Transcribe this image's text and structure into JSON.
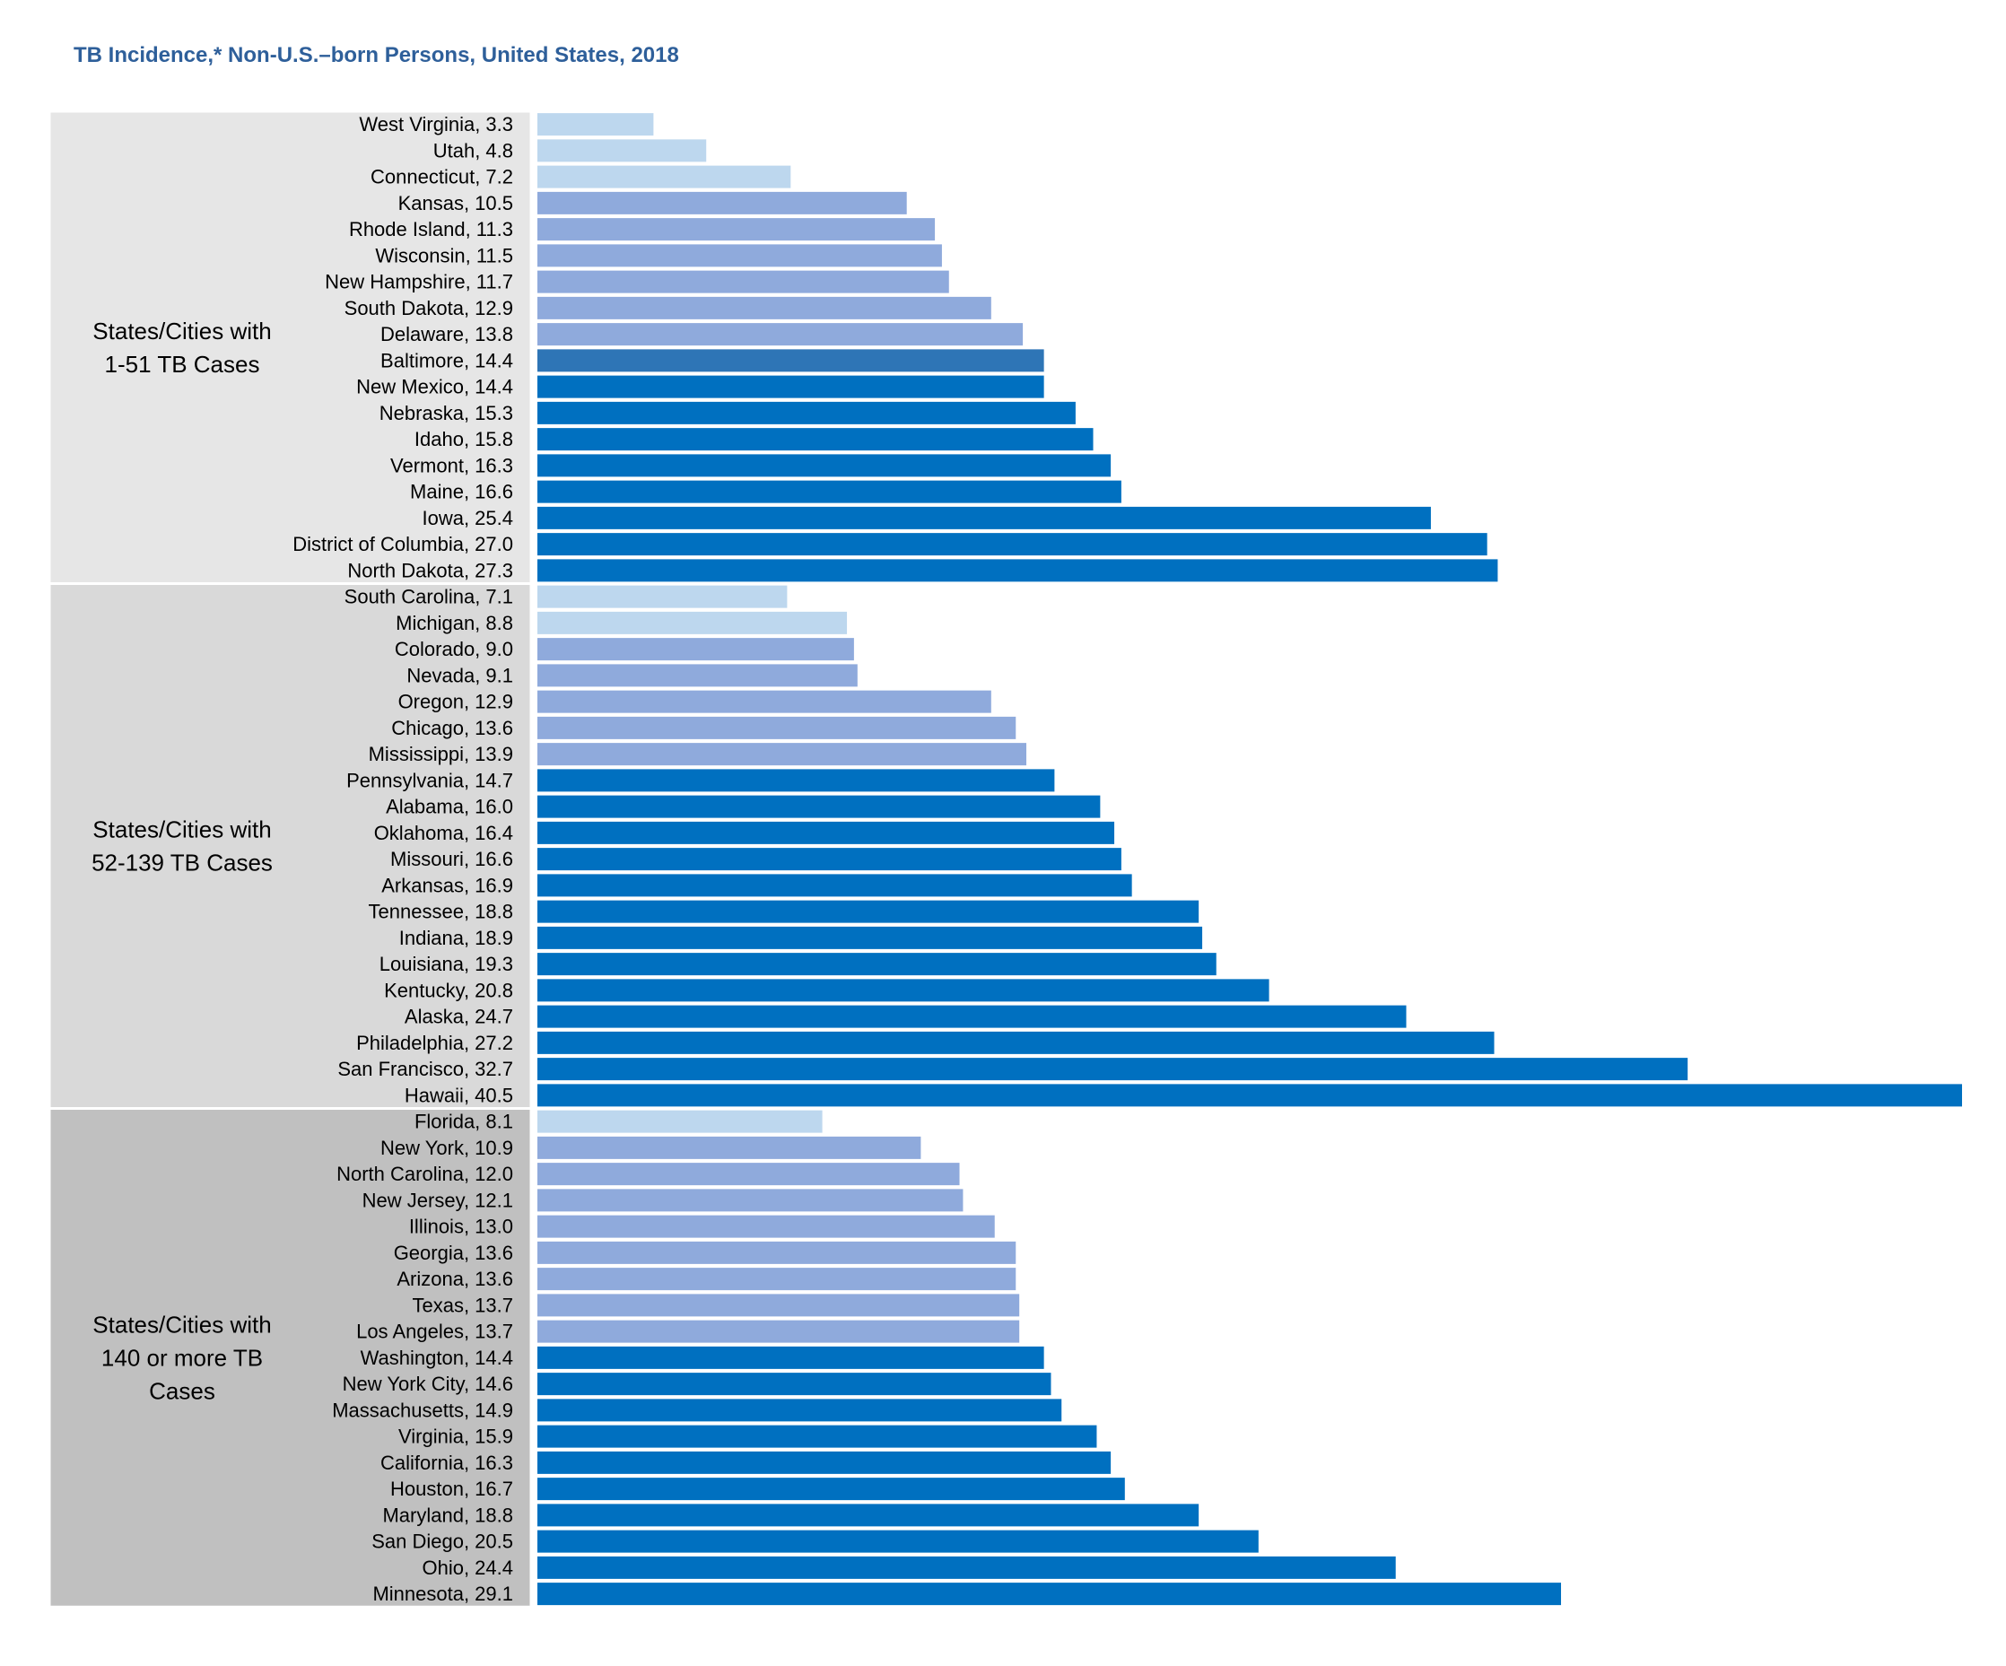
{
  "title": "TB Incidence,* Non-U.S.–born Persons, United States, 2018",
  "colors": {
    "light": "#bdd7ee",
    "medium": "#8faadc",
    "dark": "#0070c0",
    "baltimore": "#2e75b6",
    "group_backgrounds": [
      "#e6e6e6",
      "#d9d9d9",
      "#c0c0c0"
    ]
  },
  "chart_data": {
    "type": "bar",
    "orientation": "horizontal",
    "title": "TB Incidence,* Non-U.S.–born Persons, United States, 2018",
    "xlabel": "",
    "ylabel": "",
    "xlim": [
      0,
      40.5
    ],
    "grid": false,
    "groups": [
      {
        "label_lines": [
          "States/Cities with",
          "1-51 TB Cases"
        ],
        "items": [
          {
            "name": "West Virginia",
            "value": 3.3,
            "color": "light"
          },
          {
            "name": "Utah",
            "value": 4.8,
            "color": "light"
          },
          {
            "name": "Connecticut",
            "value": 7.2,
            "color": "light"
          },
          {
            "name": "Kansas",
            "value": 10.5,
            "color": "medium"
          },
          {
            "name": "Rhode Island",
            "value": 11.3,
            "color": "medium"
          },
          {
            "name": "Wisconsin",
            "value": 11.5,
            "color": "medium"
          },
          {
            "name": "New Hampshire",
            "value": 11.7,
            "color": "medium"
          },
          {
            "name": "South Dakota",
            "value": 12.9,
            "color": "medium"
          },
          {
            "name": "Delaware",
            "value": 13.8,
            "color": "medium"
          },
          {
            "name": "Baltimore",
            "value": 14.4,
            "color": "baltimore"
          },
          {
            "name": "New Mexico",
            "value": 14.4,
            "color": "dark"
          },
          {
            "name": "Nebraska",
            "value": 15.3,
            "color": "dark"
          },
          {
            "name": "Idaho",
            "value": 15.8,
            "color": "dark"
          },
          {
            "name": "Vermont",
            "value": 16.3,
            "color": "dark"
          },
          {
            "name": "Maine",
            "value": 16.6,
            "color": "dark"
          },
          {
            "name": "Iowa",
            "value": 25.4,
            "color": "dark"
          },
          {
            "name": "District of Columbia",
            "value": 27.0,
            "color": "dark"
          },
          {
            "name": "North Dakota",
            "value": 27.3,
            "color": "dark"
          }
        ]
      },
      {
        "label_lines": [
          "States/Cities with",
          "52-139 TB Cases"
        ],
        "items": [
          {
            "name": "South Carolina",
            "value": 7.1,
            "color": "light"
          },
          {
            "name": "Michigan",
            "value": 8.8,
            "color": "light"
          },
          {
            "name": "Colorado",
            "value": 9.0,
            "color": "medium"
          },
          {
            "name": "Nevada",
            "value": 9.1,
            "color": "medium"
          },
          {
            "name": "Oregon",
            "value": 12.9,
            "color": "medium"
          },
          {
            "name": "Chicago",
            "value": 13.6,
            "color": "medium"
          },
          {
            "name": "Mississippi",
            "value": 13.9,
            "color": "medium"
          },
          {
            "name": "Pennsylvania",
            "value": 14.7,
            "color": "dark"
          },
          {
            "name": "Alabama",
            "value": 16.0,
            "color": "dark"
          },
          {
            "name": "Oklahoma",
            "value": 16.4,
            "color": "dark"
          },
          {
            "name": "Missouri",
            "value": 16.6,
            "color": "dark"
          },
          {
            "name": "Arkansas",
            "value": 16.9,
            "color": "dark"
          },
          {
            "name": "Tennessee",
            "value": 18.8,
            "color": "dark"
          },
          {
            "name": "Indiana",
            "value": 18.9,
            "color": "dark"
          },
          {
            "name": "Louisiana",
            "value": 19.3,
            "color": "dark"
          },
          {
            "name": "Kentucky",
            "value": 20.8,
            "color": "dark"
          },
          {
            "name": "Alaska",
            "value": 24.7,
            "color": "dark"
          },
          {
            "name": "Philadelphia",
            "value": 27.2,
            "color": "dark"
          },
          {
            "name": "San Francisco",
            "value": 32.7,
            "color": "dark"
          },
          {
            "name": "Hawaii",
            "value": 40.5,
            "color": "dark"
          }
        ]
      },
      {
        "label_lines": [
          "States/Cities with",
          "140 or more TB",
          "Cases"
        ],
        "items": [
          {
            "name": "Florida",
            "value": 8.1,
            "color": "light"
          },
          {
            "name": "New York",
            "value": 10.9,
            "color": "medium"
          },
          {
            "name": "North Carolina",
            "value": 12.0,
            "color": "medium"
          },
          {
            "name": "New Jersey",
            "value": 12.1,
            "color": "medium"
          },
          {
            "name": "Illinois",
            "value": 13.0,
            "color": "medium"
          },
          {
            "name": "Georgia",
            "value": 13.6,
            "color": "medium"
          },
          {
            "name": "Arizona",
            "value": 13.6,
            "color": "medium"
          },
          {
            "name": "Texas",
            "value": 13.7,
            "color": "medium"
          },
          {
            "name": "Los Angeles",
            "value": 13.7,
            "color": "medium"
          },
          {
            "name": "Washington",
            "value": 14.4,
            "color": "dark"
          },
          {
            "name": "New York City",
            "value": 14.6,
            "color": "dark"
          },
          {
            "name": "Massachusetts",
            "value": 14.9,
            "color": "dark"
          },
          {
            "name": "Virginia",
            "value": 15.9,
            "color": "dark"
          },
          {
            "name": "California",
            "value": 16.3,
            "color": "dark"
          },
          {
            "name": "Houston",
            "value": 16.7,
            "color": "dark"
          },
          {
            "name": "Maryland",
            "value": 18.8,
            "color": "dark"
          },
          {
            "name": "San Diego",
            "value": 20.5,
            "color": "dark"
          },
          {
            "name": "Ohio",
            "value": 24.4,
            "color": "dark"
          },
          {
            "name": "Minnesota",
            "value": 29.1,
            "color": "dark"
          }
        ]
      }
    ]
  }
}
